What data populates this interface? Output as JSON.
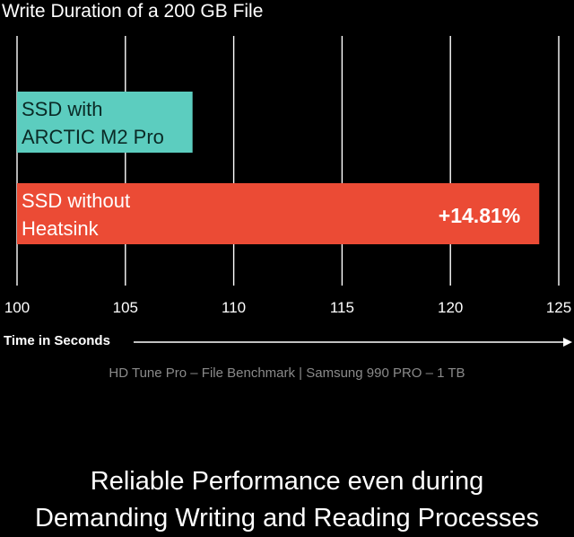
{
  "chart_data": {
    "type": "bar",
    "orientation": "horizontal",
    "title": "Write Duration of a 200 GB File",
    "xlabel": "Time in Seconds",
    "xlim": [
      100,
      125
    ],
    "xticks": [
      100,
      105,
      110,
      115,
      120,
      125
    ],
    "grid": true,
    "categories": [
      "SSD with ARCTIC M2 Pro",
      "SSD without Heatsink"
    ],
    "category_lines": [
      [
        "SSD with",
        "ARCTIC M2 Pro"
      ],
      [
        "SSD without",
        "Heatsink"
      ]
    ],
    "values": [
      108.1,
      124.1
    ],
    "colors": [
      "#5ccdbf",
      "#eb4b35"
    ],
    "annotations": [
      "",
      "+14.81%"
    ]
  },
  "source_note": "HD Tune Pro – File Benchmark | Samsung 990 PRO – 1 TB",
  "caption": {
    "line1": "Reliable Performance even during",
    "line2": "Demanding Writing and Reading Processes"
  },
  "colors": {
    "background": "#000000",
    "grid": "#ffffff",
    "label_text_teal_bar": "#0a2a26",
    "label_text_red_bar": "#ffffff"
  }
}
